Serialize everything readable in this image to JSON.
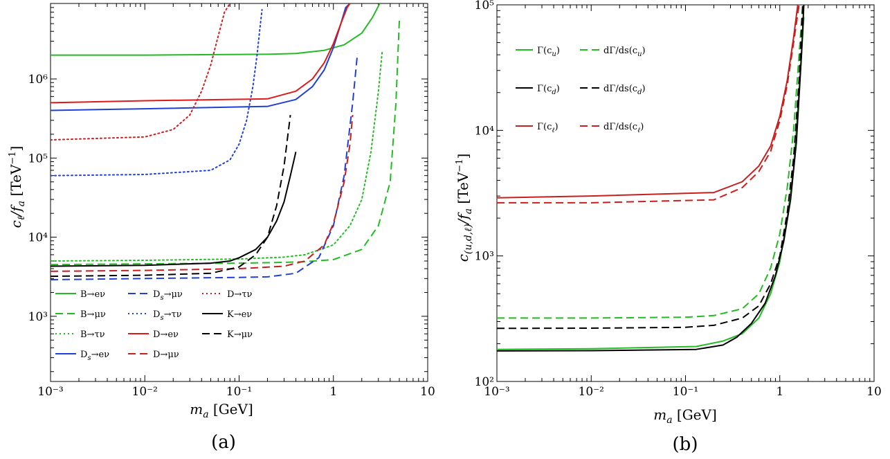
{
  "chart_data": [
    {
      "type": "line",
      "caption": "(a)",
      "xlabel": "m_a [GeV]",
      "ylabel": "c_ℓ/f_a  [TeV⁻¹]",
      "xscale": "log",
      "yscale": "log",
      "xlim": [
        0.001,
        10
      ],
      "ylim": [
        150,
        9000000
      ],
      "xticks": [
        {
          "v": 0.001,
          "label": "10⁻³"
        },
        {
          "v": 0.01,
          "label": "10⁻²"
        },
        {
          "v": 0.1,
          "label": "10⁻¹"
        },
        {
          "v": 1,
          "label": "1"
        },
        {
          "v": 10,
          "label": "10"
        }
      ],
      "yticks": [
        {
          "v": 1000,
          "label": "10³"
        },
        {
          "v": 10000,
          "label": "10⁴"
        },
        {
          "v": 100000,
          "label": "10⁵"
        },
        {
          "v": 1000000,
          "label": "10⁶"
        }
      ],
      "grid": false,
      "legend_position": "bottom-left",
      "legend_columns": 3,
      "series": [
        {
          "name": "B→eν",
          "color": "#22bb22",
          "dash": "solid",
          "x": [
            0.001,
            0.01,
            0.2,
            0.4,
            0.8,
            1.3,
            2.0,
            2.6,
            3.1
          ],
          "y": [
            2000000,
            2000000,
            2050000,
            2100000,
            2300000,
            2700000,
            3800000,
            6000000,
            9000000
          ]
        },
        {
          "name": "B→μν",
          "color": "#22bb22",
          "dash": "long",
          "x": [
            0.001,
            0.01,
            0.1,
            0.3,
            0.5,
            1.0,
            2.0,
            3.0,
            4.0,
            4.6,
            5.0
          ],
          "y": [
            4500,
            4600,
            4700,
            4800,
            4900,
            5200,
            7000,
            14000,
            50000,
            500000,
            5500000
          ]
        },
        {
          "name": "B→τν",
          "color": "#22bb22",
          "dash": "dot",
          "x": [
            0.001,
            0.01,
            0.1,
            0.3,
            0.5,
            1.0,
            1.5,
            2.0,
            2.5,
            3.0,
            3.3
          ],
          "y": [
            5000,
            5100,
            5300,
            5600,
            6000,
            8000,
            14000,
            30000,
            120000,
            700000,
            2300000
          ]
        },
        {
          "name": "D_s→eν",
          "color": "#1f3fd6",
          "dash": "solid",
          "x": [
            0.001,
            0.01,
            0.2,
            0.4,
            0.6,
            0.8,
            1.0,
            1.2,
            1.35,
            1.5
          ],
          "y": [
            400000,
            420000,
            450000,
            550000,
            800000,
            1300000,
            2500000,
            5000000,
            8000000,
            9000000
          ]
        },
        {
          "name": "D_s→μν",
          "color": "#1f3fd6",
          "dash": "long",
          "x": [
            0.001,
            0.01,
            0.1,
            0.2,
            0.4,
            0.7,
            1.0,
            1.3,
            1.6,
            1.8
          ],
          "y": [
            2900,
            3000,
            3100,
            3150,
            3500,
            5500,
            14000,
            60000,
            500000,
            2100000
          ]
        },
        {
          "name": "D_s→τν",
          "color": "#1f3fd6",
          "dash": "dot",
          "x": [
            0.001,
            0.01,
            0.05,
            0.08,
            0.1,
            0.12,
            0.14,
            0.155,
            0.165,
            0.175
          ],
          "y": [
            60000,
            62000,
            70000,
            95000,
            150000,
            300000,
            800000,
            2000000,
            4000000,
            7500000
          ]
        },
        {
          "name": "D→eν",
          "color": "#e01818",
          "dash": "solid",
          "x": [
            0.001,
            0.01,
            0.2,
            0.4,
            0.6,
            0.8,
            1.0,
            1.2,
            1.4,
            1.5
          ],
          "y": [
            500000,
            530000,
            560000,
            700000,
            1000000,
            1600000,
            2800000,
            5000000,
            8000000,
            9000000
          ]
        },
        {
          "name": "D→μν",
          "color": "#c81e1e",
          "dash": "long",
          "x": [
            0.001,
            0.01,
            0.1,
            0.3,
            0.5,
            0.8,
            1.0,
            1.3,
            1.5,
            1.6
          ],
          "y": [
            3700,
            3800,
            4000,
            4300,
            5000,
            8000,
            15000,
            50000,
            150000,
            350000
          ]
        },
        {
          "name": "D→τν",
          "color": "#c81e1e",
          "dash": "dot",
          "x": [
            0.001,
            0.01,
            0.02,
            0.03,
            0.04,
            0.05,
            0.06,
            0.07,
            0.08
          ],
          "y": [
            170000,
            185000,
            230000,
            350000,
            700000,
            1500000,
            3500000,
            7000000,
            9000000
          ]
        },
        {
          "name": "K→eν",
          "color": "#000000",
          "dash": "solid",
          "x": [
            0.001,
            0.01,
            0.05,
            0.08,
            0.1,
            0.15,
            0.2,
            0.25,
            0.3,
            0.35,
            0.4
          ],
          "y": [
            4300,
            4400,
            4700,
            5000,
            5500,
            7000,
            10000,
            16000,
            28000,
            60000,
            120000
          ]
        },
        {
          "name": "K→μν",
          "color": "#000000",
          "dash": "long",
          "x": [
            0.001,
            0.01,
            0.05,
            0.1,
            0.15,
            0.2,
            0.25,
            0.3,
            0.33,
            0.35
          ],
          "y": [
            3200,
            3300,
            3500,
            4200,
            6000,
            10000,
            25000,
            80000,
            200000,
            350000
          ]
        }
      ]
    },
    {
      "type": "line",
      "caption": "(b)",
      "xlabel": "m_a [GeV]",
      "ylabel": "c_(u,d,ℓ)/f_a  [TeV⁻¹]",
      "xscale": "log",
      "yscale": "log",
      "xlim": [
        0.001,
        10
      ],
      "ylim": [
        100,
        100000
      ],
      "xticks": [
        {
          "v": 0.001,
          "label": "10⁻³"
        },
        {
          "v": 0.01,
          "label": "10⁻²"
        },
        {
          "v": 0.1,
          "label": "10⁻¹"
        },
        {
          "v": 1,
          "label": "1"
        },
        {
          "v": 10,
          "label": "10"
        }
      ],
      "yticks": [
        {
          "v": 100,
          "label": "10²"
        },
        {
          "v": 1000,
          "label": "10³"
        },
        {
          "v": 10000,
          "label": "10⁴"
        },
        {
          "v": 100000,
          "label": "10⁵"
        }
      ],
      "grid": false,
      "legend_position": "top-left",
      "legend_rows": [
        {
          "solid": "Γ(c_u)",
          "dashed": "dΓ/ds(c_u)",
          "color": "#22bb22"
        },
        {
          "solid": "Γ(c_d)",
          "dashed": "dΓ/ds(c_d)",
          "color": "#000000"
        },
        {
          "solid": "Γ(c_ℓ)",
          "dashed": "dΓ/ds(c_ℓ)",
          "color": "#c81e1e"
        }
      ],
      "series": [
        {
          "name": "Γ(c_u)",
          "color": "#22bb22",
          "dash": "solid",
          "x": [
            0.001,
            0.01,
            0.13,
            0.25,
            0.4,
            0.6,
            0.8,
            1.0,
            1.2,
            1.4,
            1.6,
            1.8
          ],
          "y": [
            180,
            182,
            190,
            210,
            240,
            320,
            500,
            900,
            2000,
            5000,
            20000,
            80000
          ]
        },
        {
          "name": "dΓ/ds(c_u)",
          "color": "#22bb22",
          "dash": "long",
          "x": [
            0.001,
            0.01,
            0.1,
            0.2,
            0.4,
            0.6,
            0.8,
            1.0,
            1.2,
            1.4,
            1.6,
            1.75
          ],
          "y": [
            320,
            320,
            325,
            335,
            380,
            500,
            800,
            1500,
            3500,
            10000,
            40000,
            100000
          ]
        },
        {
          "name": "Γ(c_d)",
          "color": "#000000",
          "dash": "solid",
          "x": [
            0.001,
            0.01,
            0.13,
            0.25,
            0.35,
            0.5,
            0.7,
            0.9,
            1.1,
            1.3,
            1.5,
            1.7,
            1.8
          ],
          "y": [
            175,
            176,
            180,
            195,
            225,
            290,
            420,
            700,
            1300,
            2800,
            8000,
            40000,
            100000
          ]
        },
        {
          "name": "dΓ/ds(c_d)",
          "color": "#000000",
          "dash": "long",
          "x": [
            0.001,
            0.01,
            0.1,
            0.2,
            0.4,
            0.6,
            0.8,
            1.0,
            1.2,
            1.4,
            1.6,
            1.75
          ],
          "y": [
            265,
            266,
            270,
            280,
            320,
            400,
            600,
            1000,
            2200,
            6000,
            25000,
            100000
          ]
        },
        {
          "name": "Γ(c_ℓ)",
          "color": "#c81e1e",
          "dash": "solid",
          "x": [
            0.001,
            0.01,
            0.2,
            0.4,
            0.6,
            0.8,
            1.0,
            1.2,
            1.4,
            1.55
          ],
          "y": [
            2900,
            3000,
            3200,
            3900,
            5200,
            7500,
            13000,
            25000,
            55000,
            100000
          ]
        },
        {
          "name": "dΓ/ds(c_ℓ)",
          "color": "#c81e1e",
          "dash": "long",
          "x": [
            0.001,
            0.01,
            0.2,
            0.4,
            0.6,
            0.8,
            1.0,
            1.2,
            1.4,
            1.6
          ],
          "y": [
            2650,
            2650,
            2800,
            3500,
            4700,
            6800,
            12000,
            23000,
            50000,
            100000
          ]
        }
      ]
    }
  ]
}
